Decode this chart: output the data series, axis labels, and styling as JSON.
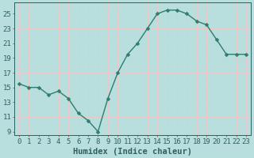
{
  "x": [
    0,
    1,
    2,
    3,
    4,
    5,
    6,
    7,
    8,
    9,
    10,
    11,
    12,
    13,
    14,
    15,
    16,
    17,
    18,
    19,
    20,
    21,
    22,
    23
  ],
  "y": [
    15.5,
    15.0,
    15.0,
    14.0,
    14.5,
    13.5,
    11.5,
    10.5,
    9.0,
    13.5,
    17.0,
    19.5,
    21.0,
    23.0,
    25.0,
    25.5,
    25.5,
    25.0,
    24.0,
    23.5,
    21.5,
    19.5,
    19.5,
    19.5
  ],
  "line_color": "#2e7d6e",
  "marker": "D",
  "marker_size": 2.5,
  "bg_color": "#b8dede",
  "grid_color": "#e8c8c8",
  "tick_color": "#2e6060",
  "xlabel": "Humidex (Indice chaleur)",
  "ylabel": "",
  "xlim": [
    -0.5,
    23.5
  ],
  "ylim": [
    8.5,
    26.5
  ],
  "yticks": [
    9,
    11,
    13,
    15,
    17,
    19,
    21,
    23,
    25
  ],
  "xticks": [
    0,
    1,
    2,
    3,
    4,
    5,
    6,
    7,
    8,
    9,
    10,
    11,
    12,
    13,
    14,
    15,
    16,
    17,
    18,
    19,
    20,
    21,
    22,
    23
  ],
  "xlabel_fontsize": 7.5,
  "tick_fontsize": 6.5,
  "line_width": 1.0
}
